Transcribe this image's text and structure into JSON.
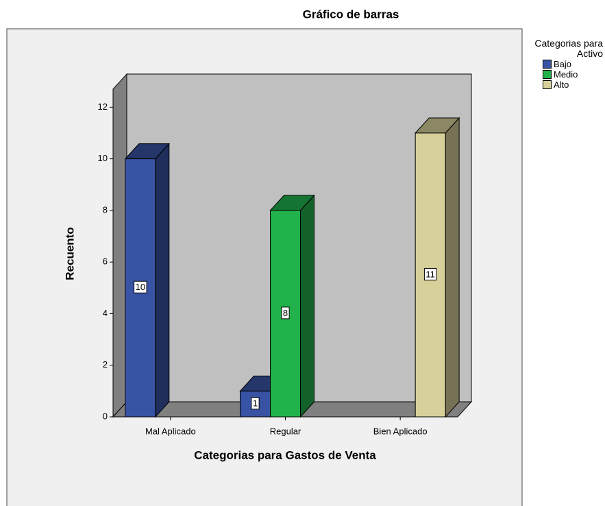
{
  "chart_data": {
    "type": "bar3d",
    "title": "Gráfico de barras",
    "x_label": "Categorias para Gastos de Venta",
    "y_label": "Recuento",
    "legend_title": "Categorias para Activo",
    "categories": [
      "Mal Aplicado",
      "Regular",
      "Bien Aplicado"
    ],
    "series": [
      {
        "name": "Bajo",
        "color": "#3953a4",
        "values": [
          10,
          1,
          null
        ]
      },
      {
        "name": "Medio",
        "color": "#21b24b",
        "values": [
          null,
          8,
          null
        ]
      },
      {
        "name": "Alto",
        "color": "#d8d09a",
        "values": [
          null,
          null,
          11
        ]
      }
    ],
    "ylim": [
      0,
      12.7
    ],
    "yticks": [
      0,
      2,
      4,
      6,
      8,
      10,
      12
    ]
  }
}
